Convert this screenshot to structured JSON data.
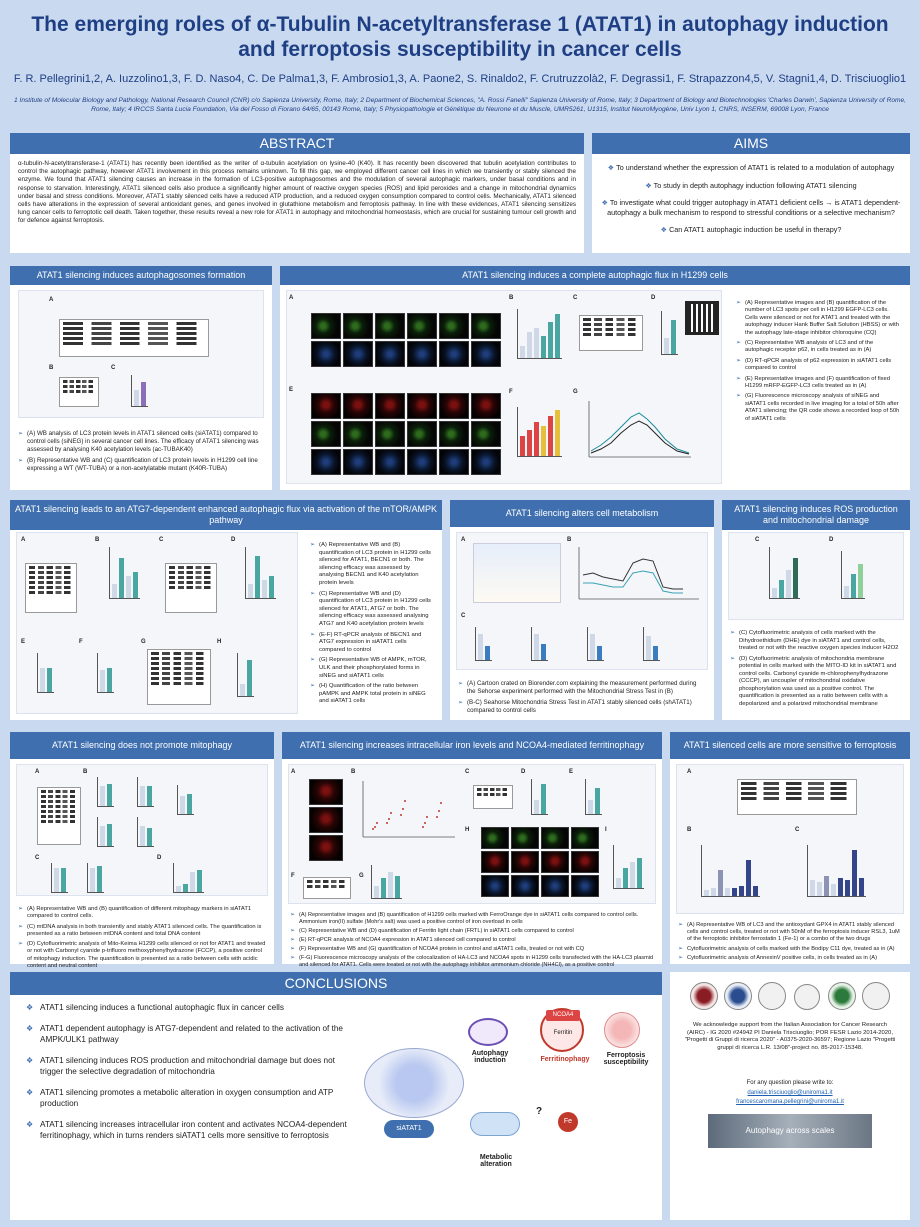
{
  "title": "The emerging roles of α-Tubulin N-acetyltransferase 1 (ATAT1) in autophagy induction and ferroptosis susceptibility in cancer cells",
  "authors": "F. R. Pellegrini1,2, A. Iuzzolino1,3, F. D. Naso4, C. De Palma1,3, F. Ambrosio1,3, A. Paone2, S. Rinaldo2, F. Crutruzzolà2, F. Degrassi1, F. Strapazzon4,5, V. Stagni1,4, D. Trisciuoglio1",
  "affiliations": "1 Institute of Molecular Biology and Pathology, National Research Council (CNR) c/o Sapienza University, Rome, Italy; 2 Department of Biochemical Sciences, \"A. Rossi Fanelli\" Sapienza University of Rome, Italy; 3 Department of Biology and Biotechnologies 'Charles Darwin', Sapienza University of Rome, Rome, Italy; 4 IRCCS Santa Lucia Foundation, Via del Fosso di Fiorano 64/65, 00143 Rome, Italy; 5 Physiopathologie et Génétique du Neurone et du Muscle, UMR5261, U1315, Institut NeuroMyogène, Univ Lyon 1, CNRS, INSERM, 69008 Lyon, France",
  "abstract": {
    "heading": "ABSTRACT",
    "text": "α-tubulin-N-acetyltransferase-1 (ATAT1) has recently been identified as the writer of α-tubulin acetylation on lysine-40 (K40). It has recently been discovered that tubulin acetylation contributes to control the autophagic pathway, however ATAT1 involvement in this process remains unknown. To fill this gap, we employed different cancer cell lines in which we transiently or stably silenced the enzyme. We found that ATAT1 silencing causes an increase in the formation of LC3-positive autophagosomes and the modulation of several autophagic markers, under basal conditions and in response to starvation. Interestingly, ATAT1 silenced cells also produce a significantly higher amount of reactive oxygen species (ROS) and lipid peroxides and a change in mitochondrial dynamics under basal and stress conditions. Moreover, ATAT1 stably silenced cells have a reduced ATP production, and a reduced oxygen consumption compared to control cells. Mechanically, ATAT1 silenced cells have alterations in the expression of several antioxidant genes, and genes involved in glutathione metabolism and ferroptosis pathway. In line with these evidences, ATAT1 silencing sensitizes lung cancer cells to ferroptotic cell death. Taken together, these results reveal a new role for ATAT1 in autophagy and mitochondrial homeostasis, which are crucial for sustaining tumour cell growth and for defence against ferroptosis."
  },
  "aims": {
    "heading": "AIMS",
    "items": [
      "To understand whether the expression of ATAT1 is related to a modulation of autophagy",
      "To study in depth autophagy induction following ATAT1 silencing",
      "To investigate what could trigger autophagy in ATAT1 deficient cells → is ATAT1 dependent-autophagy a bulk mechanism to respond to stressful conditions or a selective mechanism?",
      "Can ATAT1 autophagic induction be useful in therapy?"
    ]
  },
  "p1": {
    "heading": "ATAT1 silencing induces autophagosomes formation",
    "bullets": [
      "(A) WB analysis of LC3 protein levels in ATAT1 silenced cells (siATAT1) compared to control cells (siNEG) in several cancer cell lines. The efficacy of ATAT1 silencing was assessed by analysing K40 acetylation levels (ac-TUBAK40)",
      "(B) Representative WB and (C) quantification of LC3 protein levels in H1299 cell line expressing a WT (WT-TUBA) or a non-acetylatable mutant (K40R-TUBA)"
    ]
  },
  "p2": {
    "heading": "ATAT1 silencing induces a complete autophagic flux in H1299 cells",
    "bullets": [
      "(A) Representative images and (B) quantification of the number of LC3 spots per cell in H1299 EGFP-LC3 cells. Cells were silenced or not for ATAT1 and treated with the autophagy inducer Hank Buffer Salt Solution (HBSS) or with the autophagy late-stage inhibitor chloroquine (CQ)",
      "(C) Representative WB analysis of LC3 and of the autophagic receptor p62, in cells treated as in (A)",
      "(D) RT-qPCR analysis of p62 expression in siATAT1 cells compared to control",
      "(E) Representative images and (F) quantification of fixed H1299 mRFP-EGFP-LC3 cells treated as in (A)",
      "(G) Fluorescence microscopy analysis of siNEG and siATAT1 cells recorded in live imaging for a total of 50h after ATAT1 silencing; the QR code shows a recorded loop of 50h of siATAT1 cells"
    ]
  },
  "p3": {
    "heading": "ATAT1 silencing leads to an ATG7-dependent enhanced autophagic flux via activation of the mTOR/AMPK pathway",
    "bullets": [
      "(A) Representative WB and (B) quantification of LC3 protein in H1299 cells silenced for ATAT1, BECN1 or both. The silencing efficacy was assessed by analysing BECN1 and K40 acetylation protein levels",
      "(C) Representative WB and (D) quantification of LC3 protein in H1299 cells silenced for ATAT1, ATG7 or both. The silencing efficacy was assessed analysing ATG7 and K40 acetylation protein levels",
      "(E-F) RT-qPCR analysis of BECN1 and ATG7 expression in siATAT1 cells compared to control",
      "(G) Representative WB of AMPK, mTOR, ULK and their phosphorylated forms in siNEG and siATAT1 cells",
      "(H) Quantification of the ratio between pAMPK and AMPK total protein in siNEG and siATAT1 cells"
    ]
  },
  "p4": {
    "heading": "ATAT1 silencing alters cell metabolism",
    "bullets": [
      "(A) Cartoon crated on Biorender.com explaining the measurement performed during the Sehorse experiment performed with the Mitochondrial Stress Test in (B)",
      "(B-C) Seahorse Mitochondria Stress Test in ATAT1 stably silenced cells (shATAT1) compared to control cells"
    ]
  },
  "p5": {
    "heading": "ATAT1 silencing induces ROS production and mitochondrial damage",
    "bullets": [
      "(C) Cytofluorimetric analysis of cells marked with the Dihydroethidium (DHE) dye in siATAT1 and control cells, treated or not with the reactive oxygen species inducer H2O2",
      "(D) Cytofluorimetric analysis of mitochondria membrane potential in cells marked with the MITO-ID kit in siATAT1 and control cells. Carbonyl cyanide m-chlorophenylhydrazone (CCCP), an uncoupler of mitochondrial oxidative phosphorylation was used as a positive control. The quantification is presented as a ratio between cells with a depolarized and a polarized mitochondrial membrane"
    ]
  },
  "p6": {
    "heading": "ATAT1 silencing does not promote mitophagy",
    "bullets": [
      "(A) Representative WB and (B) quantification of different mitophagy markers in siATAT1 compared to control cells.",
      "(C) mtDNA analysis in both transiently and stably ATAT1 silenced cells. The quantification is presented as a ratio between mtDNA content and total DNA content",
      "(D) Cytofluorimetric analysis of Mito-Keima H1299 cells silenced or not for ATAT1 and treated or not with Carbonyl cyanide p-trifluoro methoxyphenylhydrazone (FCCP), a positive control of mitophagy induction. The quantification is presented as a ratio between cells with acidic content and neutral content"
    ]
  },
  "p7": {
    "heading": "ATAT1 silencing increases intracellular iron levels and NCOA4-mediated ferritinophagy",
    "bullets": [
      "(A) Representative images and (B) quantification of H1299 cells marked with FerroOrange dye in siATAT1 cells compared to control cells. Ammonium iron(II) sulfate (Mohr's salt) was used a positive control of iron overload in cells",
      "(C) Representative WB and (D) quantification of Ferritin light chain (FRTL) in siATAT1 cells compared to control",
      "(E) RT-qPCR analysis of NCOA4 expression in ATAT1 silenced cell compared to control",
      "(F) Representative WB and (G) quantification of NCOA4 protein in control and siATAT1 cells, treated or not with CQ",
      "(F-G) Fluorescence microscopy analysis of the colocalization of HA-LC3 and NCOA4 spots in H1299 cells transfected with the HA-LC3 plasmid and silenced for ATAT1. Cells were treated or not with the autophagy inhibitor ammonium chloride (NH4Cl), as a positive control"
    ]
  },
  "p8": {
    "heading": "ATAT1 silenced cells are more sensitive to ferroptosis",
    "bullets": [
      "(A) Representative WB of LC3 and the antioxydant GPX4 in ATAT1 stably silenced cells and control cells, treated or not with 50nM of the ferroptosis inducer RSL3, 1uM of the ferroptotic inhibitor ferrostatin 1 (Fe-1) or a combo of the two drugs",
      "Cytofluorimetric analysis of cells marked with the Bodipy C11 dye, treated as in (A)",
      "Cytofluorimetric analysis of AnnexinV positive cells, in cells treated as in (A)"
    ]
  },
  "conclusions": {
    "heading": "CONCLUSIONS",
    "items": [
      "ATAT1 silencing induces a functional autophagic flux in cancer cells",
      "ATAT1 dependent autophagy is ATG7-dependent and related to the activation of the AMPK/ULK1 pathway",
      "ATAT1 silencing induces ROS production and mitochondrial damage but does not trigger the selective degradation of mitochondria",
      "ATAT1 silencing promotes a metabolic alteration in oxygen consumption and ATP production",
      "ATAT1 silencing increases intracellular iron content and activates NCOA4-dependent ferritinophagy, which in turns renders siATAT1 cells more sensitive to ferroptosis"
    ],
    "diagram": {
      "siatat1": "siATAT1",
      "autophagy": "Autophagy induction",
      "ncoa4": "NCOA4",
      "ferritin": "Ferritin",
      "ferritinophagy": "Ferritinophagy",
      "ferroptosis": "Ferroptosis susceptibility",
      "fe": "Fe",
      "metabolic": "Metabolic alteration",
      "q": "?"
    }
  },
  "ack": {
    "text": "We acknowledge support from the Italian Association for Cancer Research (AIRC) - IG 2020 #24942 PI Daniela Trisciuoglio; POR FESR Lazio 2014-2020, \"Progetti di Gruppi di ricerca 2020\" - A0375-2020-36597; Regione Lazio \"Progetti gruppi di ricerca L.R. 13/08\"-project no. 85-2017-15348.",
    "question": "For any question please write to:",
    "email1": "daniela.trisciuoglio@uniroma1.it",
    "email2": "francescaromana.pellegrini@uniroma1.it",
    "banner": "Autophagy across scales"
  }
}
